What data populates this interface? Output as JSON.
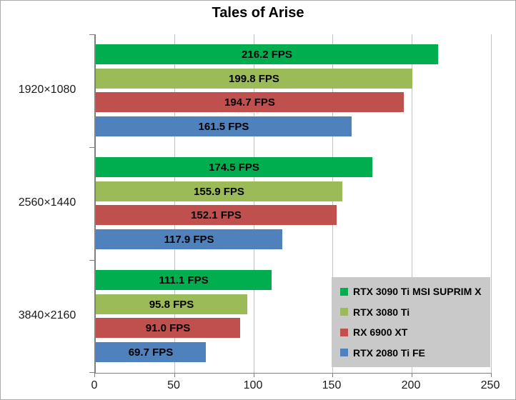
{
  "chart_data": {
    "type": "bar",
    "orientation": "horizontal",
    "title": "Tales of Arise",
    "categories": [
      "1920×1080",
      "2560×1440",
      "3840×2160"
    ],
    "series": [
      {
        "name": "RTX 3090 Ti MSI SUPRIM X",
        "color": "#00AE50",
        "values": [
          216.2,
          174.5,
          111.1
        ]
      },
      {
        "name": "RTX 3080 Ti",
        "color": "#9BBB59",
        "values": [
          199.8,
          155.9,
          95.8
        ]
      },
      {
        "name": "RX 6900 XT",
        "color": "#C0504D",
        "values": [
          194.7,
          152.1,
          91.0
        ]
      },
      {
        "name": "RTX 2080 Ti FE",
        "color": "#4F81BD",
        "values": [
          161.5,
          117.9,
          69.7
        ]
      }
    ],
    "value_suffix": " FPS",
    "value_decimals": 1,
    "xlim": [
      0,
      250
    ],
    "xticks": [
      0,
      50,
      100,
      150,
      200,
      250
    ],
    "grid": true,
    "legend_position": "bottom-right",
    "legend_bg": "#C9C9C9"
  }
}
